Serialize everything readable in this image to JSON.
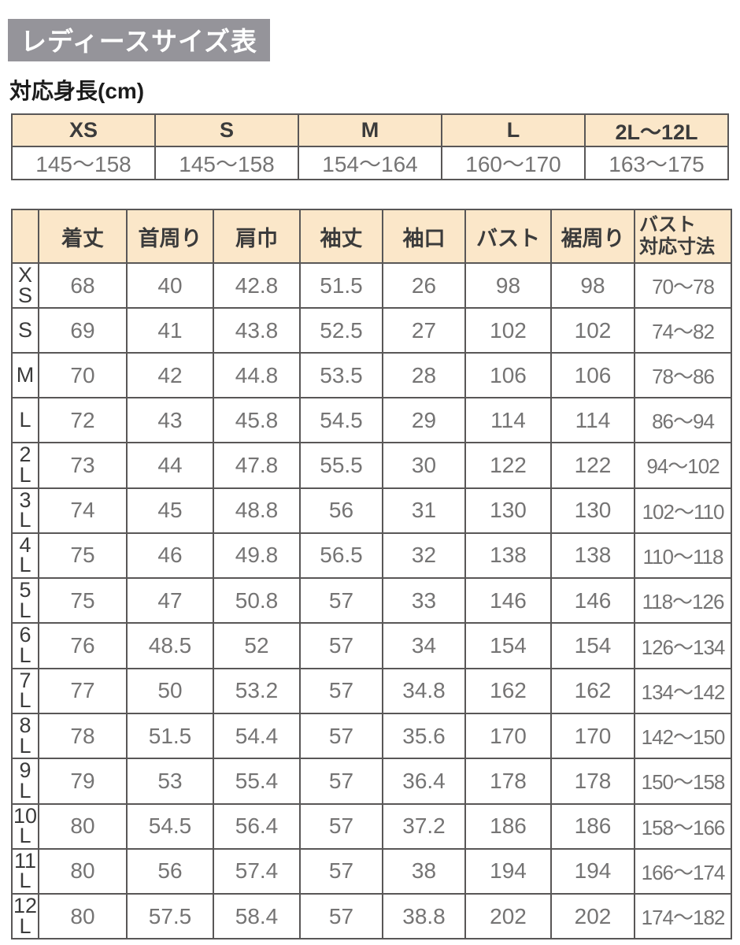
{
  "page": {
    "title": "レディースサイズ表",
    "subtitle": "対応身長(cm)"
  },
  "colors": {
    "title_bg": "#95949a",
    "title_text": "#ffffff",
    "header_bg": "#fbe7c9",
    "border": "#595757",
    "value_text": "#757474",
    "label_text": "#3b3b3b"
  },
  "height_table": {
    "headers": [
      "XS",
      "S",
      "M",
      "L",
      "2L〜12L"
    ],
    "values": [
      "145〜158",
      "145〜158",
      "154〜164",
      "160〜170",
      "163〜175"
    ]
  },
  "size_table": {
    "corner_label": "",
    "column_headers": [
      "着丈",
      "首周り",
      "肩巾",
      "袖丈",
      "袖口",
      "バスト",
      "裾周り",
      "バスト\n対応寸法"
    ],
    "rows": [
      {
        "size": "XS",
        "values": [
          "68",
          "40",
          "42.8",
          "51.5",
          "26",
          "98",
          "98",
          "70〜78"
        ]
      },
      {
        "size": "S",
        "values": [
          "69",
          "41",
          "43.8",
          "52.5",
          "27",
          "102",
          "102",
          "74〜82"
        ]
      },
      {
        "size": "M",
        "values": [
          "70",
          "42",
          "44.8",
          "53.5",
          "28",
          "106",
          "106",
          "78〜86"
        ]
      },
      {
        "size": "L",
        "values": [
          "72",
          "43",
          "45.8",
          "54.5",
          "29",
          "114",
          "114",
          "86〜94"
        ]
      },
      {
        "size": "2L",
        "values": [
          "73",
          "44",
          "47.8",
          "55.5",
          "30",
          "122",
          "122",
          "94〜102"
        ]
      },
      {
        "size": "3L",
        "values": [
          "74",
          "45",
          "48.8",
          "56",
          "31",
          "130",
          "130",
          "102〜110"
        ]
      },
      {
        "size": "4L",
        "values": [
          "75",
          "46",
          "49.8",
          "56.5",
          "32",
          "138",
          "138",
          "110〜118"
        ]
      },
      {
        "size": "5L",
        "values": [
          "75",
          "47",
          "50.8",
          "57",
          "33",
          "146",
          "146",
          "118〜126"
        ]
      },
      {
        "size": "6L",
        "values": [
          "76",
          "48.5",
          "52",
          "57",
          "34",
          "154",
          "154",
          "126〜134"
        ]
      },
      {
        "size": "7L",
        "values": [
          "77",
          "50",
          "53.2",
          "57",
          "34.8",
          "162",
          "162",
          "134〜142"
        ]
      },
      {
        "size": "8L",
        "values": [
          "78",
          "51.5",
          "54.4",
          "57",
          "35.6",
          "170",
          "170",
          "142〜150"
        ]
      },
      {
        "size": "9L",
        "values": [
          "79",
          "53",
          "55.4",
          "57",
          "36.4",
          "178",
          "178",
          "150〜158"
        ]
      },
      {
        "size": "10L",
        "values": [
          "80",
          "54.5",
          "56.4",
          "57",
          "37.2",
          "186",
          "186",
          "158〜166"
        ]
      },
      {
        "size": "11L",
        "values": [
          "80",
          "56",
          "57.4",
          "57",
          "38",
          "194",
          "194",
          "166〜174"
        ]
      },
      {
        "size": "12L",
        "values": [
          "80",
          "57.5",
          "58.4",
          "57",
          "38.8",
          "202",
          "202",
          "174〜182"
        ]
      }
    ]
  }
}
